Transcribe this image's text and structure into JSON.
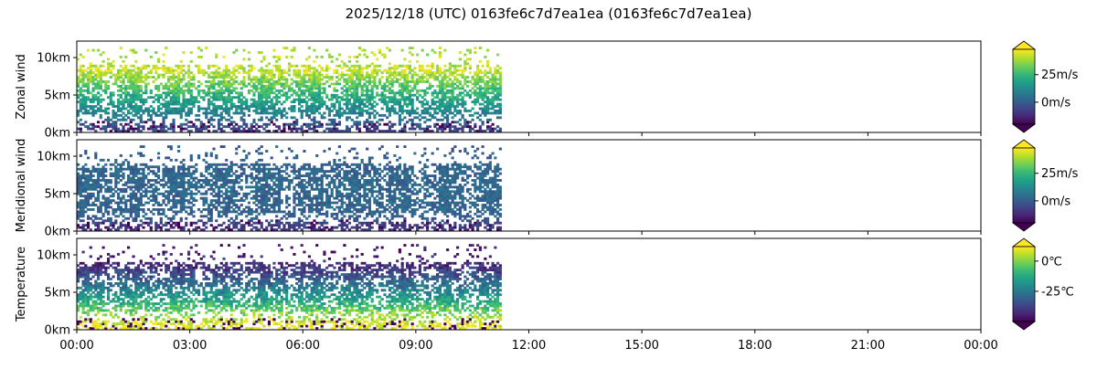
{
  "figure": {
    "title": "2025/12/18 (UTC) 0163fe6c7d7ea1ea (0163fe6c7d7ea1ea)"
  },
  "colormap": {
    "name": "viridis",
    "stops": [
      "#440154",
      "#482878",
      "#3e4989",
      "#31688e",
      "#26828e",
      "#1f9e89",
      "#35b779",
      "#6ece58",
      "#b5de2b",
      "#fde725"
    ]
  },
  "chart_data": [
    {
      "type": "heatmap",
      "ylabel": "Zonal wind",
      "x_ticks": [
        "00:00",
        "03:00",
        "06:00",
        "09:00",
        "12:00",
        "15:00",
        "18:00",
        "21:00",
        "00:00"
      ],
      "x_range_hours": [
        0,
        24
      ],
      "data_extent_hours": [
        0,
        11.25
      ],
      "y_ticks": [
        {
          "value": 0,
          "label": "0km"
        },
        {
          "value": 5,
          "label": "5km"
        },
        {
          "value": 10,
          "label": "10km"
        }
      ],
      "y_range_km": [
        0,
        12.2
      ],
      "colorbar": {
        "range": [
          -20,
          48
        ],
        "extend": "both",
        "ticks": [
          {
            "value": 0,
            "label": "0m/s"
          },
          {
            "value": 25,
            "label": "25m/s"
          }
        ]
      },
      "profile": [
        {
          "height_km": 0.5,
          "value": -5
        },
        {
          "height_km": 2.0,
          "value": 8
        },
        {
          "height_km": 4.0,
          "value": 18
        },
        {
          "height_km": 6.0,
          "value": 30
        },
        {
          "height_km": 8.0,
          "value": 42
        },
        {
          "height_km": 10.0,
          "value": 40
        },
        {
          "height_km": 12.0,
          "value": 38
        }
      ]
    },
    {
      "type": "heatmap",
      "ylabel": "Meridional wind",
      "x_ticks": [
        "00:00",
        "03:00",
        "06:00",
        "09:00",
        "12:00",
        "15:00",
        "18:00",
        "21:00",
        "00:00"
      ],
      "x_range_hours": [
        0,
        24
      ],
      "data_extent_hours": [
        0,
        11.25
      ],
      "y_ticks": [
        {
          "value": 0,
          "label": "0km"
        },
        {
          "value": 5,
          "label": "5km"
        },
        {
          "value": 10,
          "label": "10km"
        }
      ],
      "y_range_km": [
        0,
        12.2
      ],
      "colorbar": {
        "range": [
          -20,
          48
        ],
        "extend": "both",
        "ticks": [
          {
            "value": 0,
            "label": "0m/s"
          },
          {
            "value": 25,
            "label": "25m/s"
          }
        ]
      },
      "profile": [
        {
          "height_km": 0.5,
          "value": -8
        },
        {
          "height_km": 2.0,
          "value": 2
        },
        {
          "height_km": 4.0,
          "value": 2
        },
        {
          "height_km": 6.0,
          "value": 3
        },
        {
          "height_km": 8.0,
          "value": 2
        },
        {
          "height_km": 10.0,
          "value": 0
        },
        {
          "height_km": 12.0,
          "value": 0
        }
      ]
    },
    {
      "type": "heatmap",
      "ylabel": "Temperature",
      "x_ticks": [
        "00:00",
        "03:00",
        "06:00",
        "09:00",
        "12:00",
        "15:00",
        "18:00",
        "21:00",
        "00:00"
      ],
      "x_range_hours": [
        0,
        24
      ],
      "data_extent_hours": [
        0,
        11.25
      ],
      "y_ticks": [
        {
          "value": 0,
          "label": "0km"
        },
        {
          "value": 5,
          "label": "5km"
        },
        {
          "value": 10,
          "label": "10km"
        }
      ],
      "y_range_km": [
        0,
        12.2
      ],
      "colorbar": {
        "range": [
          -50,
          12
        ],
        "extend": "both",
        "ticks": [
          {
            "value": 0,
            "label": "0℃"
          },
          {
            "value": -25,
            "label": "-25℃"
          }
        ]
      },
      "profile": [
        {
          "height_km": 0.5,
          "value": 10
        },
        {
          "height_km": 2.0,
          "value": 0
        },
        {
          "height_km": 4.0,
          "value": -15
        },
        {
          "height_km": 6.0,
          "value": -28
        },
        {
          "height_km": 8.0,
          "value": -40
        },
        {
          "height_km": 10.0,
          "value": -45
        },
        {
          "height_km": 12.0,
          "value": -45
        }
      ]
    }
  ]
}
